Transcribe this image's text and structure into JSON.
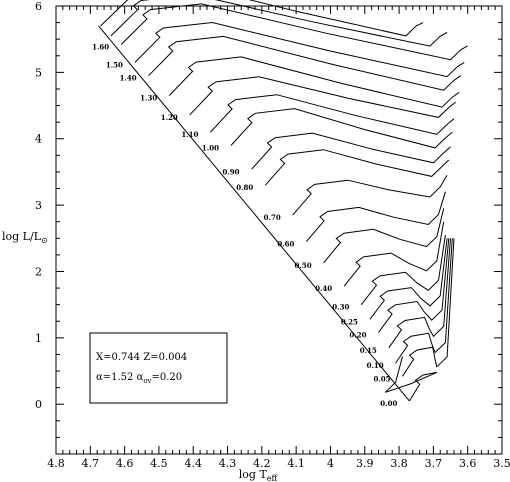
{
  "chart_data": {
    "type": "line",
    "title": "",
    "xlabel": {
      "main": "log T",
      "sub": "eff"
    },
    "ylabel": {
      "main": "log L/L",
      "sub": "⊙"
    },
    "xlim": [
      4.8,
      3.5
    ],
    "ylim": [
      -0.75,
      6
    ],
    "x_ticks": [
      "4.8",
      "4.7",
      "4.6",
      "4.5",
      "4.4",
      "4.3",
      "4.2",
      "4.1",
      "4",
      "3.9",
      "3.8",
      "3.7",
      "3.6",
      "3.5"
    ],
    "y_ticks": [
      "0",
      "1",
      "2",
      "3",
      "4",
      "5",
      "6"
    ],
    "x_tick_values": [
      4.8,
      4.7,
      4.6,
      4.5,
      4.4,
      4.3,
      4.2,
      4.1,
      4.0,
      3.9,
      3.8,
      3.7,
      3.6,
      3.5
    ],
    "y_tick_values": [
      0,
      1,
      2,
      3,
      4,
      5,
      6
    ],
    "legend": {
      "line1": "X=0.744  Z=0.004",
      "line2": "α=1.52  α",
      "line2_sub": "ov",
      "line2_tail": "=0.20"
    },
    "isochrones": [
      {
        "label": "0.00",
        "zams_x": 3.77,
        "zams_y": 0.05,
        "tip_x": 3.79,
        "tip_y": 0.72
      },
      {
        "label": "0.05",
        "zams_x": 3.79,
        "zams_y": 0.42,
        "tip_x": 3.64,
        "tip_y": 2.5
      },
      {
        "label": "0.10",
        "zams_x": 3.81,
        "zams_y": 0.62,
        "tip_x": 3.645,
        "tip_y": 2.5
      },
      {
        "label": "0.15",
        "zams_x": 3.83,
        "zams_y": 0.85,
        "tip_x": 3.65,
        "tip_y": 2.5
      },
      {
        "label": "0.20",
        "zams_x": 3.86,
        "zams_y": 1.08,
        "tip_x": 3.655,
        "tip_y": 2.5
      },
      {
        "label": "0.25",
        "zams_x": 3.885,
        "zams_y": 1.28,
        "tip_x": 3.66,
        "tip_y": 2.5
      },
      {
        "label": "0.30",
        "zams_x": 3.91,
        "zams_y": 1.5,
        "tip_x": 3.665,
        "tip_y": 2.55
      },
      {
        "label": "0.40",
        "zams_x": 3.96,
        "zams_y": 1.78,
        "tip_x": 3.67,
        "tip_y": 2.75
      },
      {
        "label": "0.50",
        "zams_x": 4.02,
        "zams_y": 2.13,
        "tip_x": 3.67,
        "tip_y": 2.95
      },
      {
        "label": "0.60",
        "zams_x": 4.07,
        "zams_y": 2.45,
        "tip_x": 3.665,
        "tip_y": 3.2
      },
      {
        "label": "0.70",
        "zams_x": 4.11,
        "zams_y": 2.85,
        "tip_x": 3.66,
        "tip_y": 3.45
      },
      {
        "label": "0.80",
        "zams_x": 4.19,
        "zams_y": 3.3,
        "tip_x": 3.655,
        "tip_y": 3.68
      },
      {
        "label": "0.90",
        "zams_x": 4.23,
        "zams_y": 3.54,
        "tip_x": 3.65,
        "tip_y": 3.88
      },
      {
        "label": "1.00",
        "zams_x": 4.29,
        "zams_y": 3.9,
        "tip_x": 3.645,
        "tip_y": 4.1
      },
      {
        "label": "1.10",
        "zams_x": 4.35,
        "zams_y": 4.1,
        "tip_x": 3.64,
        "tip_y": 4.3
      },
      {
        "label": "1.20",
        "zams_x": 4.41,
        "zams_y": 4.36,
        "tip_x": 3.635,
        "tip_y": 4.55
      },
      {
        "label": "1.30",
        "zams_x": 4.47,
        "zams_y": 4.65,
        "tip_x": 3.625,
        "tip_y": 4.7
      },
      {
        "label": "1.40",
        "zams_x": 4.53,
        "zams_y": 4.95,
        "tip_x": 3.62,
        "tip_y": 4.95
      },
      {
        "label": "1.50",
        "zams_x": 4.57,
        "zams_y": 5.15,
        "tip_x": 3.61,
        "tip_y": 5.15
      },
      {
        "label": "1.60",
        "zams_x": 4.61,
        "zams_y": 5.42,
        "tip_x": 3.6,
        "tip_y": 5.4
      },
      {
        "label": "",
        "zams_x": 4.64,
        "zams_y": 5.55,
        "tip_x": 3.66,
        "tip_y": 5.6
      },
      {
        "label": "",
        "zams_x": 4.67,
        "zams_y": 5.7,
        "tip_x": 3.73,
        "tip_y": 5.75
      }
    ]
  }
}
